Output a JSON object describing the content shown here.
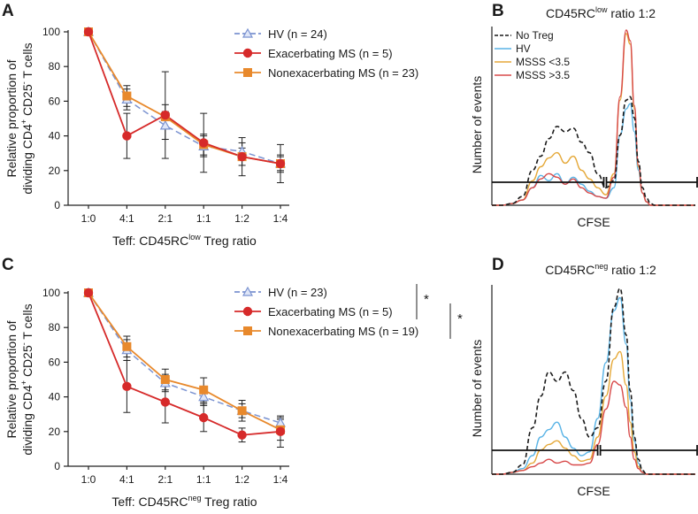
{
  "figure": {
    "colors": {
      "hv": "#7b93d1",
      "exacerbating": "#d62a2a",
      "nonexacerbating": "#e8892c",
      "no_treg": "#1a1a1a",
      "hist_hv": "#5ab4e6",
      "hist_low": "#e5a93a",
      "hist_high": "#d84a4a",
      "hist_overlap": "#e0704a"
    }
  },
  "chart_data": [
    {
      "panel": "A",
      "type": "line",
      "categories": [
        "1:0",
        "4:1",
        "2:1",
        "1:1",
        "1:2",
        "1:4"
      ],
      "xlabel": "Teff: CD45RC",
      "xlabel_sup": "low",
      "xlabel_suffix": " Treg ratio",
      "ylabel_line1": "Relative proportion of",
      "ylabel_line2": "dividing CD4",
      "ylabel_sup1": "+",
      "ylabel_mid": " CD25",
      "ylabel_sup2": "-",
      "ylabel_end": " T cells",
      "ylim": [
        0,
        100
      ],
      "yticks": [
        0,
        20,
        40,
        60,
        80,
        100
      ],
      "series": [
        {
          "key": "hv",
          "name": "HV (n = 24)",
          "values": [
            100,
            61,
            46,
            34,
            31,
            24
          ],
          "err": [
            0,
            6,
            8,
            6,
            5,
            4
          ]
        },
        {
          "key": "exacerbating",
          "name": "Exacerbating MS (n = 5)",
          "values": [
            100,
            40,
            52,
            36,
            28,
            24
          ],
          "err": [
            0,
            13,
            25,
            17,
            11,
            11
          ]
        },
        {
          "key": "nonexacerbating",
          "name": "Nonexacerbating MS (n = 23)",
          "values": [
            100,
            63,
            51,
            35,
            28,
            24
          ],
          "err": [
            0,
            6,
            7,
            6,
            5,
            5
          ]
        }
      ],
      "significance": []
    },
    {
      "panel": "B",
      "type": "histogram",
      "title": "CD45RC",
      "title_sup": "low",
      "title_suffix": " ratio 1:2",
      "xlabel": "CFSE",
      "ylabel": "Number of events",
      "legend": [
        {
          "key": "no_treg",
          "name": "No Treg"
        },
        {
          "key": "hist_hv",
          "name": "HV"
        },
        {
          "key": "hist_low",
          "name": "MSSS <3.5"
        },
        {
          "key": "hist_high",
          "name": "MSSS >3.5"
        }
      ],
      "cfse_grid": [
        0,
        0.05,
        0.1,
        0.15,
        0.2,
        0.24,
        0.28,
        0.32,
        0.36,
        0.4,
        0.44,
        0.48,
        0.52,
        0.56,
        0.6,
        0.63,
        0.66,
        0.68,
        0.7,
        0.72,
        0.74,
        0.76,
        0.78,
        0.8,
        0.85,
        0.9,
        1.0
      ],
      "series": [
        {
          "key": "no_treg",
          "dashed": true,
          "values": [
            0,
            0,
            0.01,
            0.05,
            0.2,
            0.28,
            0.38,
            0.45,
            0.42,
            0.44,
            0.36,
            0.3,
            0.18,
            0.1,
            0.14,
            0.4,
            0.6,
            0.62,
            0.5,
            0.25,
            0.1,
            0.04,
            0.01,
            0,
            0,
            0,
            0
          ]
        },
        {
          "key": "hist_hv",
          "dashed": false,
          "values": [
            0,
            0,
            0.01,
            0.03,
            0.1,
            0.17,
            0.14,
            0.18,
            0.12,
            0.16,
            0.12,
            0.08,
            0.05,
            0.04,
            0.1,
            0.4,
            0.55,
            0.58,
            0.42,
            0.2,
            0.07,
            0.02,
            0,
            0,
            0,
            0,
            0
          ]
        },
        {
          "key": "hist_low",
          "dashed": false,
          "values": [
            0,
            0,
            0.01,
            0.03,
            0.14,
            0.22,
            0.27,
            0.3,
            0.24,
            0.28,
            0.2,
            0.15,
            0.1,
            0.06,
            0.18,
            0.6,
            0.98,
            0.92,
            0.55,
            0.22,
            0.07,
            0.02,
            0,
            0,
            0,
            0,
            0
          ]
        },
        {
          "key": "hist_high",
          "dashed": false,
          "values": [
            0,
            0,
            0.01,
            0.03,
            0.1,
            0.15,
            0.18,
            0.16,
            0.12,
            0.15,
            0.1,
            0.07,
            0.05,
            0.04,
            0.16,
            0.62,
            1.0,
            0.94,
            0.57,
            0.23,
            0.07,
            0.02,
            0,
            0,
            0,
            0,
            0
          ]
        }
      ],
      "gate_split": 0.55
    },
    {
      "panel": "C",
      "type": "line",
      "categories": [
        "1:0",
        "4:1",
        "2:1",
        "1:1",
        "1:2",
        "1:4"
      ],
      "xlabel": "Teff: CD45RC",
      "xlabel_sup": "neg",
      "xlabel_suffix": " Treg ratio",
      "ylabel_line1": "Relative proportion of",
      "ylabel_line2": "dividing CD4",
      "ylabel_sup1": "+",
      "ylabel_mid": " CD25",
      "ylabel_sup2": "-",
      "ylabel_end": " T cells",
      "ylim": [
        0,
        100
      ],
      "yticks": [
        0,
        20,
        40,
        60,
        80,
        100
      ],
      "series": [
        {
          "key": "hv",
          "name": "HV (n = 23)",
          "values": [
            100,
            67,
            48,
            40,
            32,
            25
          ],
          "err": [
            0,
            6,
            5,
            5,
            4,
            3
          ]
        },
        {
          "key": "exacerbating",
          "name": "Exacerbating MS (n = 5)",
          "values": [
            100,
            46,
            37,
            28,
            18,
            20
          ],
          "err": [
            0,
            15,
            12,
            8,
            4,
            9
          ]
        },
        {
          "key": "nonexacerbating",
          "name": "Nonexacerbating MS (n = 19)",
          "values": [
            100,
            69,
            50,
            44,
            32,
            21
          ],
          "err": [
            0,
            6,
            6,
            7,
            6,
            6
          ]
        }
      ],
      "significance": [
        {
          "label": "*",
          "between": [
            "hv",
            "exacerbating"
          ]
        },
        {
          "label": "*",
          "between": [
            "exacerbating",
            "nonexacerbating"
          ]
        }
      ]
    },
    {
      "panel": "D",
      "type": "histogram",
      "title": "CD45RC",
      "title_sup": "neg",
      "title_suffix": " ratio 1:2",
      "xlabel": "CFSE",
      "ylabel": "Number of events",
      "legend": [],
      "cfse_grid": [
        0,
        0.05,
        0.1,
        0.15,
        0.2,
        0.24,
        0.28,
        0.32,
        0.36,
        0.4,
        0.44,
        0.48,
        0.52,
        0.56,
        0.6,
        0.63,
        0.66,
        0.68,
        0.7,
        0.72,
        0.74,
        0.76,
        0.78,
        0.8,
        0.85,
        0.9,
        1.0
      ],
      "series": [
        {
          "key": "no_treg",
          "dashed": true,
          "values": [
            0,
            0,
            0.01,
            0.05,
            0.25,
            0.42,
            0.55,
            0.5,
            0.55,
            0.45,
            0.3,
            0.2,
            0.25,
            0.5,
            0.9,
            1.0,
            0.75,
            0.45,
            0.2,
            0.08,
            0.02,
            0,
            0,
            0,
            0,
            0,
            0
          ]
        },
        {
          "key": "hist_hv",
          "dashed": false,
          "values": [
            0,
            0,
            0.01,
            0.03,
            0.1,
            0.2,
            0.24,
            0.28,
            0.2,
            0.14,
            0.1,
            0.12,
            0.3,
            0.6,
            0.88,
            0.95,
            0.7,
            0.4,
            0.18,
            0.06,
            0.01,
            0,
            0,
            0,
            0,
            0,
            0
          ]
        },
        {
          "key": "hist_low",
          "dashed": false,
          "values": [
            0,
            0,
            0.01,
            0.02,
            0.06,
            0.13,
            0.16,
            0.18,
            0.14,
            0.1,
            0.07,
            0.08,
            0.2,
            0.42,
            0.62,
            0.66,
            0.48,
            0.28,
            0.12,
            0.04,
            0.01,
            0,
            0,
            0,
            0,
            0,
            0
          ]
        },
        {
          "key": "hist_high",
          "dashed": false,
          "values": [
            0,
            0,
            0.01,
            0.02,
            0.04,
            0.06,
            0.08,
            0.06,
            0.07,
            0.05,
            0.05,
            0.06,
            0.16,
            0.35,
            0.5,
            0.48,
            0.36,
            0.2,
            0.08,
            0.03,
            0.01,
            0,
            0,
            0,
            0,
            0,
            0
          ]
        }
      ],
      "gate_split": 0.52
    }
  ]
}
